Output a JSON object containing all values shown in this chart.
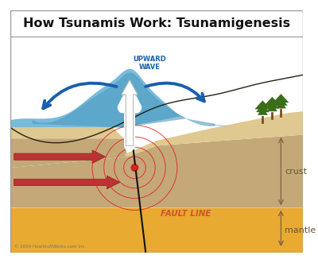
{
  "title": "How Tsunamis Work: Tsunamigenesis",
  "title_fontsize": 11.5,
  "bg_top": "#e8f4fa",
  "ocean_color": "#6ab4d8",
  "ocean_color2": "#4a9abf",
  "sand_color": "#dfc990",
  "crust_color": "#c4a878",
  "crust_color2": "#b89868",
  "mantle_color": "#e8aa30",
  "fault_color": "#111111",
  "seismic_color": "#dd2222",
  "arrow_red": "#bb3333",
  "arrow_blue": "#1a5faa",
  "label_crust": "crust",
  "label_mantle": "mantle",
  "label_fault": "FAULT LINE",
  "label_wave": "UPWARD\nWAVE",
  "copyright": "© 2004 HowStuffWorks.com Inc.",
  "tree_color": "#3a6e1a",
  "tree_trunk": "#7a5020",
  "title_bg": "#ffffff",
  "border_color": "#999999"
}
